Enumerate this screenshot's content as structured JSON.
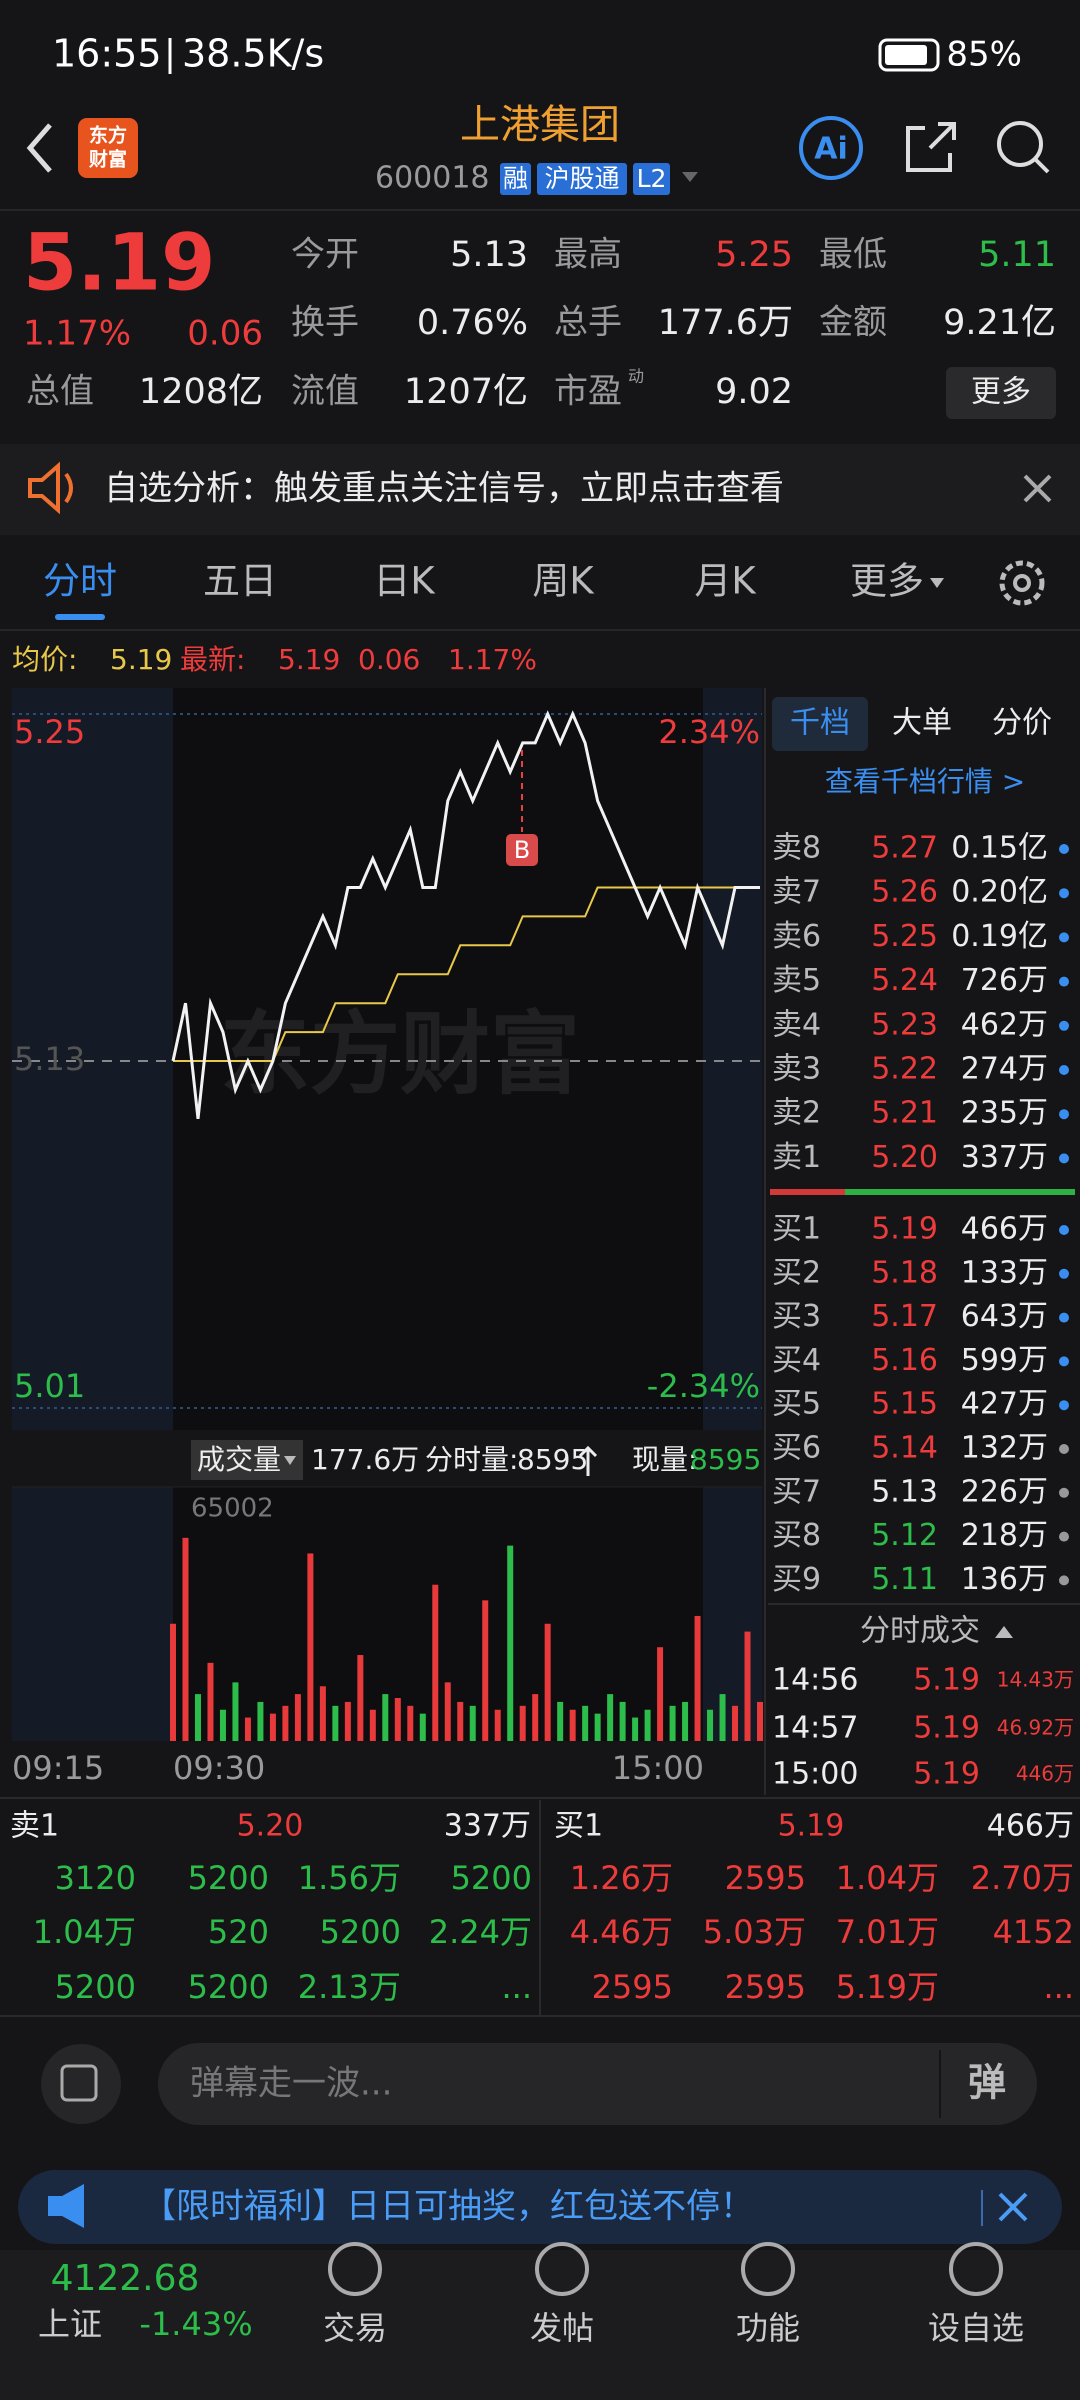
{
  "status_bar": {
    "time": "16:55",
    "speed": "38.5K/s",
    "battery": "85%"
  },
  "header": {
    "logo": [
      "东方",
      "财富"
    ],
    "title": "上港集团",
    "code": "600018",
    "badges": [
      "融",
      "沪股通",
      "L2"
    ],
    "ai": "Ai"
  },
  "quote": {
    "price": "5.19",
    "change_pct": "1.17%",
    "change": "0.06",
    "fields": [
      {
        "label": "今开",
        "value": "5.13"
      },
      {
        "label": "最高",
        "value": "5.25"
      },
      {
        "label": "最低",
        "value": "5.11"
      },
      {
        "label": "换手",
        "value": "0.76%"
      },
      {
        "label": "总手",
        "value": "177.6万"
      },
      {
        "label": "金额",
        "value": "9.21亿"
      },
      {
        "label": "总值",
        "value": "1208亿"
      },
      {
        "label": "流值",
        "value": "1207亿"
      },
      {
        "label": "市盈",
        "sup": "动",
        "value": "9.02"
      }
    ],
    "more": "更多"
  },
  "banner": "自选分析：触发重点关注信号，立即点击查看",
  "tabs": [
    "分时",
    "五日",
    "日K",
    "周K",
    "月K",
    "更多"
  ],
  "summary": {
    "avg_label": "均价:",
    "avg": "5.19",
    "last_label": "最新:",
    "last": "5.19",
    "change": "0.06",
    "change_pct": "1.17%"
  },
  "chart_data": [
    {
      "type": "line",
      "ylim": [
        5.01,
        5.25
      ],
      "yticks": [
        5.01,
        5.13,
        5.25
      ],
      "y2lim": [
        -2.34,
        2.34
      ],
      "y2ticks": [
        {
          "value": -2.34,
          "label": "-2.34%"
        },
        {
          "value": 2.34,
          "label": "2.34%"
        }
      ],
      "annotation": "B",
      "watermark": "东方财富",
      "series": [
        {
          "color": "#f2f2f2",
          "values": [
            5.13,
            5.15,
            5.11,
            5.15,
            5.14,
            5.12,
            5.13,
            5.12,
            5.13,
            5.15,
            5.16,
            5.17,
            5.18,
            5.17,
            5.19,
            5.19,
            5.2,
            5.19,
            5.2,
            5.21,
            5.19,
            5.19,
            5.22,
            5.23,
            5.22,
            5.23,
            5.24,
            5.23,
            5.24,
            5.24,
            5.25,
            5.24,
            5.25,
            5.24,
            5.22,
            5.21,
            5.2,
            5.19,
            5.18,
            5.19,
            5.18,
            5.17,
            5.19,
            5.18,
            5.17,
            5.19,
            5.19,
            5.19
          ]
        },
        {
          "color": "#e8c84a",
          "values": [
            5.13,
            5.13,
            5.13,
            5.13,
            5.13,
            5.13,
            5.13,
            5.13,
            5.13,
            5.14,
            5.14,
            5.14,
            5.14,
            5.15,
            5.15,
            5.15,
            5.15,
            5.15,
            5.16,
            5.16,
            5.16,
            5.16,
            5.16,
            5.17,
            5.17,
            5.17,
            5.17,
            5.17,
            5.18,
            5.18,
            5.18,
            5.18,
            5.18,
            5.18,
            5.19,
            5.19,
            5.19,
            5.19,
            5.19,
            5.19,
            5.19,
            5.19,
            5.19,
            5.19,
            5.19,
            5.19,
            5.19,
            5.19
          ]
        }
      ]
    },
    {
      "type": "bar",
      "ylim": [
        0,
        65002
      ],
      "yticks": [
        65002
      ],
      "up_color": "#e8393b",
      "down_color": "#2dbd4a",
      "x_labels": [
        "09:15",
        "09:30",
        "15:00"
      ],
      "values": [
        30000,
        52000,
        12000,
        20000,
        8000,
        15000,
        6000,
        10000,
        7000,
        9000,
        12000,
        48000,
        14000,
        9000,
        10000,
        22000,
        8000,
        12000,
        11000,
        9000,
        7000,
        40000,
        15000,
        10000,
        9000,
        36000,
        8000,
        50000,
        9000,
        12000,
        30000,
        10000,
        8000,
        9000,
        7000,
        12000,
        10000,
        6000,
        8000,
        24000,
        9000,
        10000,
        32000,
        8000,
        12000,
        9000,
        28000,
        10000
      ]
    }
  ],
  "volume_header": {
    "label": "成交量",
    "total": "177.6万",
    "minute_label": "分时量:",
    "minute": "8595",
    "current_label": "现量:",
    "current": "8595"
  },
  "order_book": {
    "tabs": [
      "千档",
      "大单",
      "分价"
    ],
    "link": "查看千档行情 >",
    "asks": [
      {
        "label": "卖8",
        "price": "5.27",
        "volume": "0.15亿"
      },
      {
        "label": "卖7",
        "price": "5.26",
        "volume": "0.20亿"
      },
      {
        "label": "卖6",
        "price": "5.25",
        "volume": "0.19亿"
      },
      {
        "label": "卖5",
        "price": "5.24",
        "volume": "726万"
      },
      {
        "label": "卖4",
        "price": "5.23",
        "volume": "462万"
      },
      {
        "label": "卖3",
        "price": "5.22",
        "volume": "274万"
      },
      {
        "label": "卖2",
        "price": "5.21",
        "volume": "235万"
      },
      {
        "label": "卖1",
        "price": "5.20",
        "volume": "337万"
      }
    ],
    "bids": [
      {
        "label": "买1",
        "price": "5.19",
        "volume": "466万"
      },
      {
        "label": "买2",
        "price": "5.18",
        "volume": "133万"
      },
      {
        "label": "买3",
        "price": "5.17",
        "volume": "643万"
      },
      {
        "label": "买4",
        "price": "5.16",
        "volume": "599万"
      },
      {
        "label": "买5",
        "price": "5.15",
        "volume": "427万"
      },
      {
        "label": "买6",
        "price": "5.14",
        "volume": "132万"
      },
      {
        "label": "买7",
        "price": "5.13",
        "volume": "226万"
      },
      {
        "label": "买8",
        "price": "5.12",
        "volume": "218万"
      },
      {
        "label": "买9",
        "price": "5.11",
        "volume": "136万"
      }
    ]
  },
  "trades": {
    "title": "分时成交",
    "rows": [
      {
        "time": "14:56",
        "price": "5.19",
        "volume": "14.43万"
      },
      {
        "time": "14:57",
        "price": "5.19",
        "volume": "46.92万"
      },
      {
        "time": "15:00",
        "price": "5.19",
        "volume": "446万"
      }
    ]
  },
  "queue": {
    "ask": {
      "label": "卖1",
      "price": "5.20",
      "volume": "337万",
      "orders": [
        "3120",
        "5200",
        "1.56万",
        "5200",
        "1.04万",
        "520",
        "5200",
        "2.24万",
        "5200",
        "5200",
        "2.13万",
        "..."
      ]
    },
    "bid": {
      "label": "买1",
      "price": "5.19",
      "volume": "466万",
      "orders": [
        "1.26万",
        "2595",
        "1.04万",
        "2.70万",
        "4.46万",
        "5.03万",
        "7.01万",
        "4152",
        "2595",
        "2595",
        "5.19万",
        "..."
      ]
    }
  },
  "comment": {
    "placeholder": "弹幕走一波...",
    "button": "弹"
  },
  "promo": "【限时福利】日日可抽奖，红包送不停！",
  "bottom_nav": {
    "index_name": "上证",
    "index_value": "4122.68",
    "index_change": "-1.43%",
    "items": [
      "交易",
      "发帖",
      "功能",
      "设自选"
    ]
  }
}
